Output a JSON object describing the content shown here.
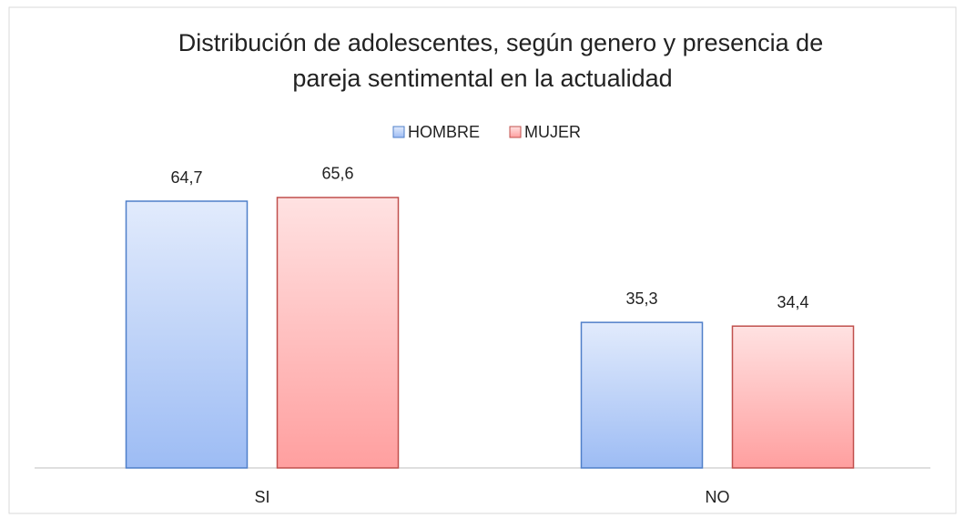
{
  "chart_data": {
    "type": "bar",
    "title": [
      "Distribución de adolescentes, según genero y presencia de",
      "pareja sentimental en la actualidad"
    ],
    "categories": [
      "SI",
      "NO"
    ],
    "series": [
      {
        "name": "HOMBRE",
        "color": "#9dbcf4",
        "border_color": "#4f7fc9",
        "values": [
          64.7,
          35.3
        ],
        "value_labels": [
          "64,7",
          "35,3"
        ]
      },
      {
        "name": "MUJER",
        "color": "#ff9f9f",
        "border_color": "#c0504d",
        "values": [
          65.6,
          34.4
        ],
        "value_labels": [
          "65,6",
          "34,4"
        ]
      }
    ],
    "ylim": [
      0,
      70
    ],
    "legend": "top"
  }
}
